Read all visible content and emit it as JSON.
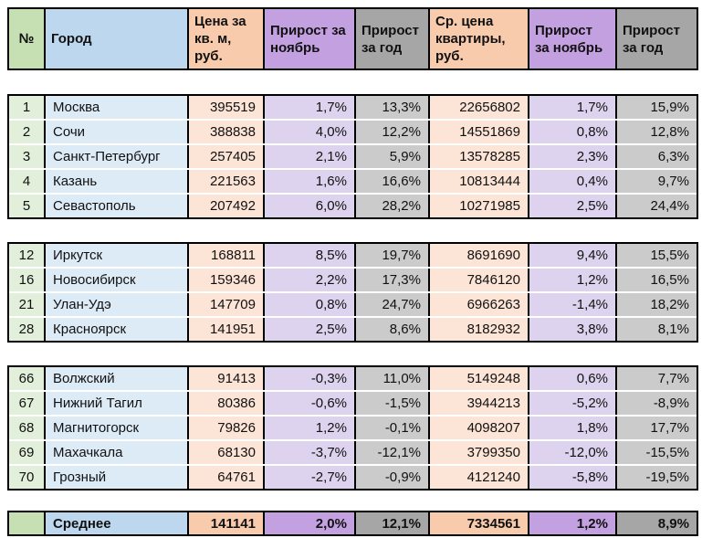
{
  "colors": {
    "border": "#000000",
    "row_separator": "#ffffff",
    "header": {
      "green": "#c6e0b4",
      "blue": "#bdd7ee",
      "peach": "#f8cbad",
      "purple": "#c3a0e0",
      "gray": "#a6a6a6"
    },
    "data": {
      "green": "#e2efda",
      "blue": "#ddebf7",
      "peach": "#fce4d6",
      "purple": "#ddd3ee",
      "gray": "#cbcbcb"
    }
  },
  "table": {
    "columns": [
      {
        "key": "num",
        "label": "№",
        "tone": "green"
      },
      {
        "key": "city",
        "label": "Город",
        "tone": "blue"
      },
      {
        "key": "price_sqm",
        "label": "Цена за кв. м, руб.",
        "tone": "peach"
      },
      {
        "key": "growth_nov_sqm",
        "label": "Прирост за ноябрь",
        "tone": "purple"
      },
      {
        "key": "growth_year_sqm",
        "label": "Прирост за год",
        "tone": "gray"
      },
      {
        "key": "price_flat",
        "label": "Ср. цена квартиры, руб.",
        "tone": "peach"
      },
      {
        "key": "growth_nov_flat",
        "label": "Прирост за ноябрь",
        "tone": "purple"
      },
      {
        "key": "growth_year_flat",
        "label": "Прирост за год",
        "tone": "gray"
      }
    ],
    "blocks": [
      [
        {
          "num": "1",
          "city": "Москва",
          "price_sqm": "395519",
          "growth_nov_sqm": "1,7%",
          "growth_year_sqm": "13,3%",
          "price_flat": "22656802",
          "growth_nov_flat": "1,7%",
          "growth_year_flat": "15,9%"
        },
        {
          "num": "2",
          "city": "Сочи",
          "price_sqm": "388838",
          "growth_nov_sqm": "4,0%",
          "growth_year_sqm": "12,2%",
          "price_flat": "14551869",
          "growth_nov_flat": "0,8%",
          "growth_year_flat": "12,8%"
        },
        {
          "num": "3",
          "city": "Санкт-Петербург",
          "price_sqm": "257405",
          "growth_nov_sqm": "2,1%",
          "growth_year_sqm": "5,9%",
          "price_flat": "13578285",
          "growth_nov_flat": "2,3%",
          "growth_year_flat": "6,3%"
        },
        {
          "num": "4",
          "city": "Казань",
          "price_sqm": "221563",
          "growth_nov_sqm": "1,6%",
          "growth_year_sqm": "16,6%",
          "price_flat": "10813444",
          "growth_nov_flat": "0,4%",
          "growth_year_flat": "9,7%"
        },
        {
          "num": "5",
          "city": "Севастополь",
          "price_sqm": "207492",
          "growth_nov_sqm": "6,0%",
          "growth_year_sqm": "28,2%",
          "price_flat": "10271985",
          "growth_nov_flat": "2,5%",
          "growth_year_flat": "24,4%"
        }
      ],
      [
        {
          "num": "12",
          "city": "Иркутск",
          "price_sqm": "168811",
          "growth_nov_sqm": "8,5%",
          "growth_year_sqm": "19,7%",
          "price_flat": "8691690",
          "growth_nov_flat": "9,4%",
          "growth_year_flat": "15,5%"
        },
        {
          "num": "16",
          "city": "Новосибирск",
          "price_sqm": "159346",
          "growth_nov_sqm": "2,2%",
          "growth_year_sqm": "17,3%",
          "price_flat": "7846120",
          "growth_nov_flat": "1,2%",
          "growth_year_flat": "16,5%"
        },
        {
          "num": "21",
          "city": "Улан-Удэ",
          "price_sqm": "147709",
          "growth_nov_sqm": "0,8%",
          "growth_year_sqm": "24,7%",
          "price_flat": "6966263",
          "growth_nov_flat": "-1,4%",
          "growth_year_flat": "18,2%"
        },
        {
          "num": "28",
          "city": "Красноярск",
          "price_sqm": "141951",
          "growth_nov_sqm": "2,5%",
          "growth_year_sqm": "8,6%",
          "price_flat": "8182932",
          "growth_nov_flat": "3,8%",
          "growth_year_flat": "8,1%"
        }
      ],
      [
        {
          "num": "66",
          "city": "Волжский",
          "price_sqm": "91413",
          "growth_nov_sqm": "-0,3%",
          "growth_year_sqm": "11,0%",
          "price_flat": "5149248",
          "growth_nov_flat": "0,6%",
          "growth_year_flat": "7,7%"
        },
        {
          "num": "67",
          "city": "Нижний Тагил",
          "price_sqm": "80386",
          "growth_nov_sqm": "-0,6%",
          "growth_year_sqm": "-1,5%",
          "price_flat": "3944213",
          "growth_nov_flat": "-5,2%",
          "growth_year_flat": "-8,9%"
        },
        {
          "num": "68",
          "city": "Магнитогорск",
          "price_sqm": "79826",
          "growth_nov_sqm": "1,2%",
          "growth_year_sqm": "-0,1%",
          "price_flat": "4098207",
          "growth_nov_flat": "1,8%",
          "growth_year_flat": "17,7%"
        },
        {
          "num": "69",
          "city": "Махачкала",
          "price_sqm": "68130",
          "growth_nov_sqm": "-3,7%",
          "growth_year_sqm": "-12,1%",
          "price_flat": "3799350",
          "growth_nov_flat": "-12,0%",
          "growth_year_flat": "-15,5%"
        },
        {
          "num": "70",
          "city": "Грозный",
          "price_sqm": "64761",
          "growth_nov_sqm": "-2,7%",
          "growth_year_sqm": "-0,9%",
          "price_flat": "4121240",
          "growth_nov_flat": "-5,8%",
          "growth_year_flat": "-19,5%"
        }
      ]
    ],
    "summary": {
      "num": "",
      "city": "Среднее",
      "price_sqm": "141141",
      "growth_nov_sqm": "2,0%",
      "growth_year_sqm": "12,1%",
      "price_flat": "7334561",
      "growth_nov_flat": "1,2%",
      "growth_year_flat": "8,9%"
    }
  }
}
